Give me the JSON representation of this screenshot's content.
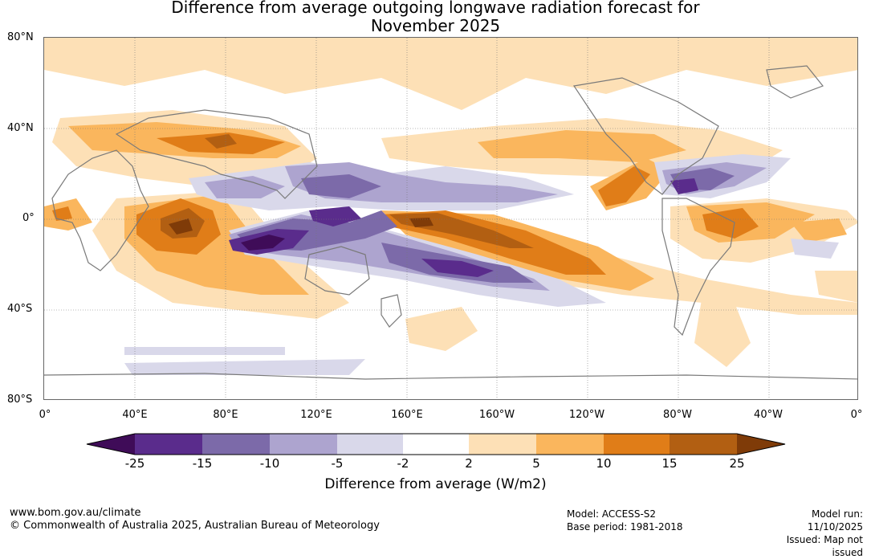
{
  "title": {
    "line1": "Difference from average outgoing longwave radiation forecast for",
    "line2": "November 2025"
  },
  "map": {
    "lat_labels": [
      "80°N",
      "40°N",
      "0°",
      "40°S",
      "80°S"
    ],
    "lon_labels": [
      "0°",
      "40°E",
      "80°E",
      "120°E",
      "160°E",
      "160°W",
      "120°W",
      "80°W",
      "40°W",
      "0°"
    ],
    "anomalies": [
      {
        "name": "anomaly-central-pacific-positive",
        "level": 15,
        "color": "#e07d18"
      },
      {
        "name": "anomaly-central-pacific-core",
        "level": 25,
        "color": "#b25f12"
      },
      {
        "name": "anomaly-western-indian-ocean-positive",
        "level": 15,
        "color": "#e07d18"
      },
      {
        "name": "anomaly-maritime-continent-negative",
        "level": -15,
        "color": "#5a2c8c"
      },
      {
        "name": "anomaly-south-pacific-negative",
        "level": -10,
        "color": "#7c6aa9"
      },
      {
        "name": "anomaly-caribbean-negative",
        "level": -15,
        "color": "#5a2c8c"
      }
    ]
  },
  "colorbar": {
    "ticks": [
      "-25",
      "-15",
      "-10",
      "-5",
      "-2",
      "2",
      "5",
      "10",
      "15",
      "25"
    ],
    "colors": [
      "#3f0c58",
      "#5a2c8c",
      "#7c6aa9",
      "#ada4cf",
      "#d9d8ea",
      "#ffffff",
      "#fde0b6",
      "#fab65d",
      "#e07d18",
      "#b25f12",
      "#7f3b08"
    ],
    "label": "Difference from average (W/m2)"
  },
  "footer": {
    "website": "www.bom.gov.au/climate",
    "copyright": "© Commonwealth of Australia 2025, Australian Bureau of Meteorology",
    "model": "Model: ACCESS-S2",
    "base_period": "Base period: 1981-2018",
    "model_run": "Model run: 11/10/2025",
    "issued": "Issued: Map not issued"
  }
}
